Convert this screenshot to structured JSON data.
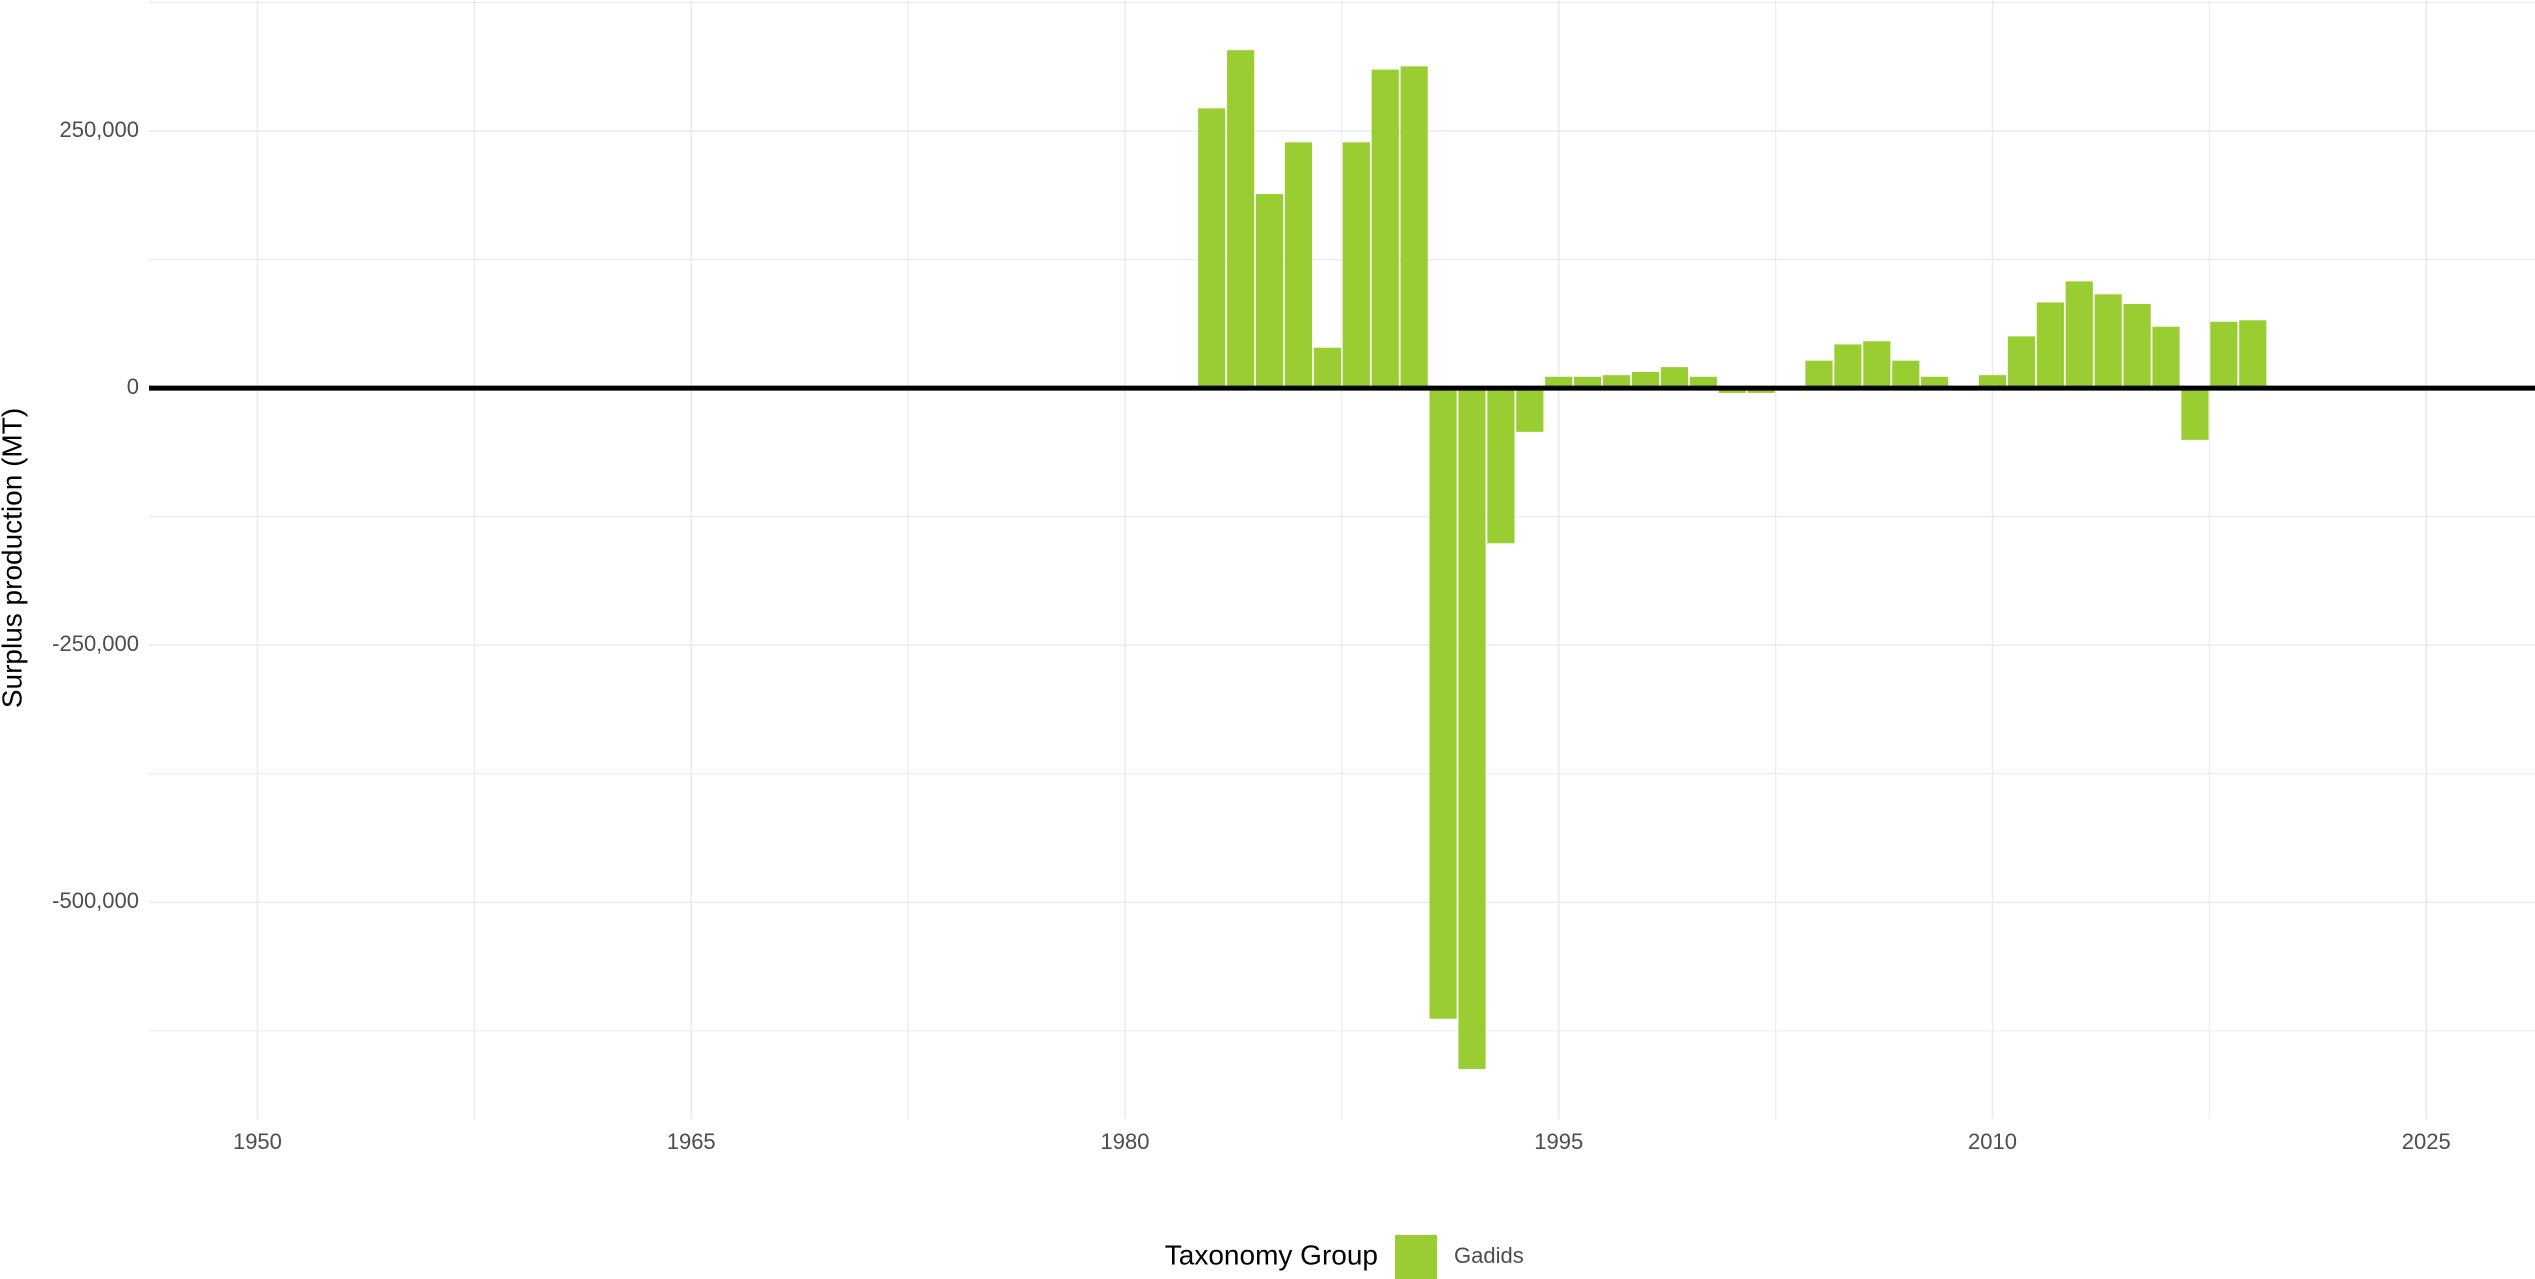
{
  "chart_data": {
    "type": "bar",
    "y_label": "Surplus production (MT)",
    "legend_title": "Taxonomy Group",
    "series": [
      {
        "name": "Gadids",
        "color": "#9acd32",
        "x": [
          1983,
          1984,
          1985,
          1986,
          1987,
          1988,
          1989,
          1990,
          1991,
          1992,
          1993,
          1994,
          1995,
          1996,
          1997,
          1998,
          1999,
          2000,
          2001,
          2002,
          2004,
          2005,
          2006,
          2007,
          2008,
          2010,
          2011,
          2012,
          2013,
          2014,
          2015,
          2016,
          2017,
          2018,
          2019
        ],
        "values": [
          272000,
          328600,
          188700,
          239000,
          39300,
          239000,
          309700,
          312900,
          -613200,
          -662000,
          -150900,
          -42500,
          11000,
          11000,
          12600,
          15700,
          20400,
          11000,
          -4700,
          -4700,
          26700,
          42500,
          45600,
          26700,
          11000,
          12600,
          50300,
          83300,
          103800,
          91200,
          81800,
          59700,
          -50300,
          64500,
          66000
        ]
      }
    ],
    "xlim": [
      1946.25,
      2028.76
    ],
    "ylim": [
      -710700,
      377400
    ],
    "xticks": [
      1950,
      1965,
      1980,
      1995,
      2010,
      2025
    ],
    "yticks": [
      {
        "value": -500000,
        "label": "-500,000"
      },
      {
        "value": -250000,
        "label": "-250,000"
      },
      0,
      {
        "value": 250000,
        "label": "250,000"
      }
    ],
    "grid": true,
    "legend_position": "bottom"
  }
}
